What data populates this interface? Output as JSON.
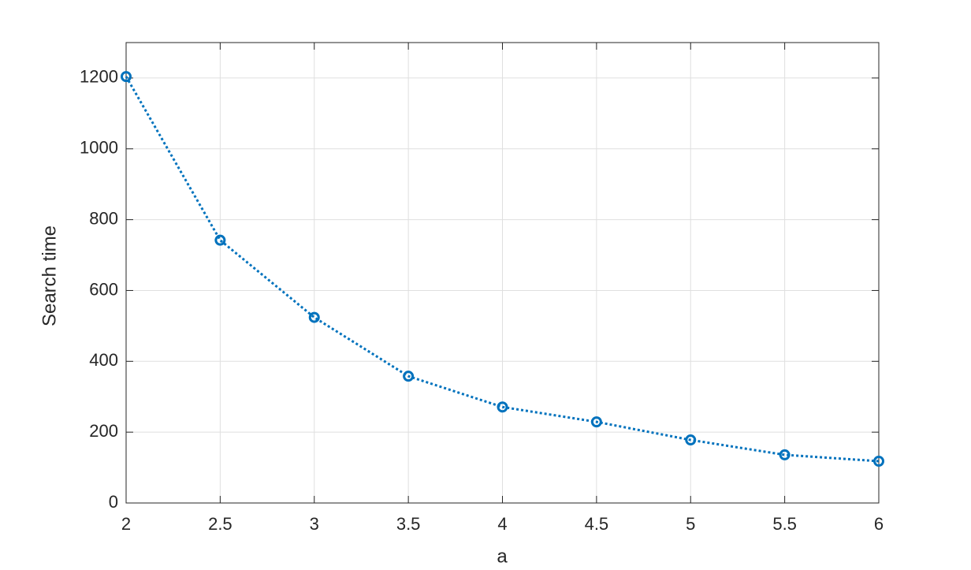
{
  "chart_data": {
    "type": "line",
    "xlabel": "a",
    "ylabel": "Search time",
    "x": [
      2,
      2.5,
      3,
      3.5,
      4,
      4.5,
      5,
      5.5,
      6
    ],
    "series": [
      {
        "name": "Search time",
        "color": "#0072bd",
        "values": [
          1204,
          742,
          524,
          358,
          271,
          229,
          178,
          136,
          118
        ]
      }
    ],
    "xlim": [
      2,
      6
    ],
    "xticks": [
      2,
      2.5,
      3,
      3.5,
      4,
      4.5,
      5,
      5.5,
      6
    ],
    "ylim": [
      0,
      1300
    ],
    "yticks": [
      0,
      200,
      400,
      600,
      800,
      1000,
      1200
    ],
    "grid": true,
    "legend": false
  }
}
